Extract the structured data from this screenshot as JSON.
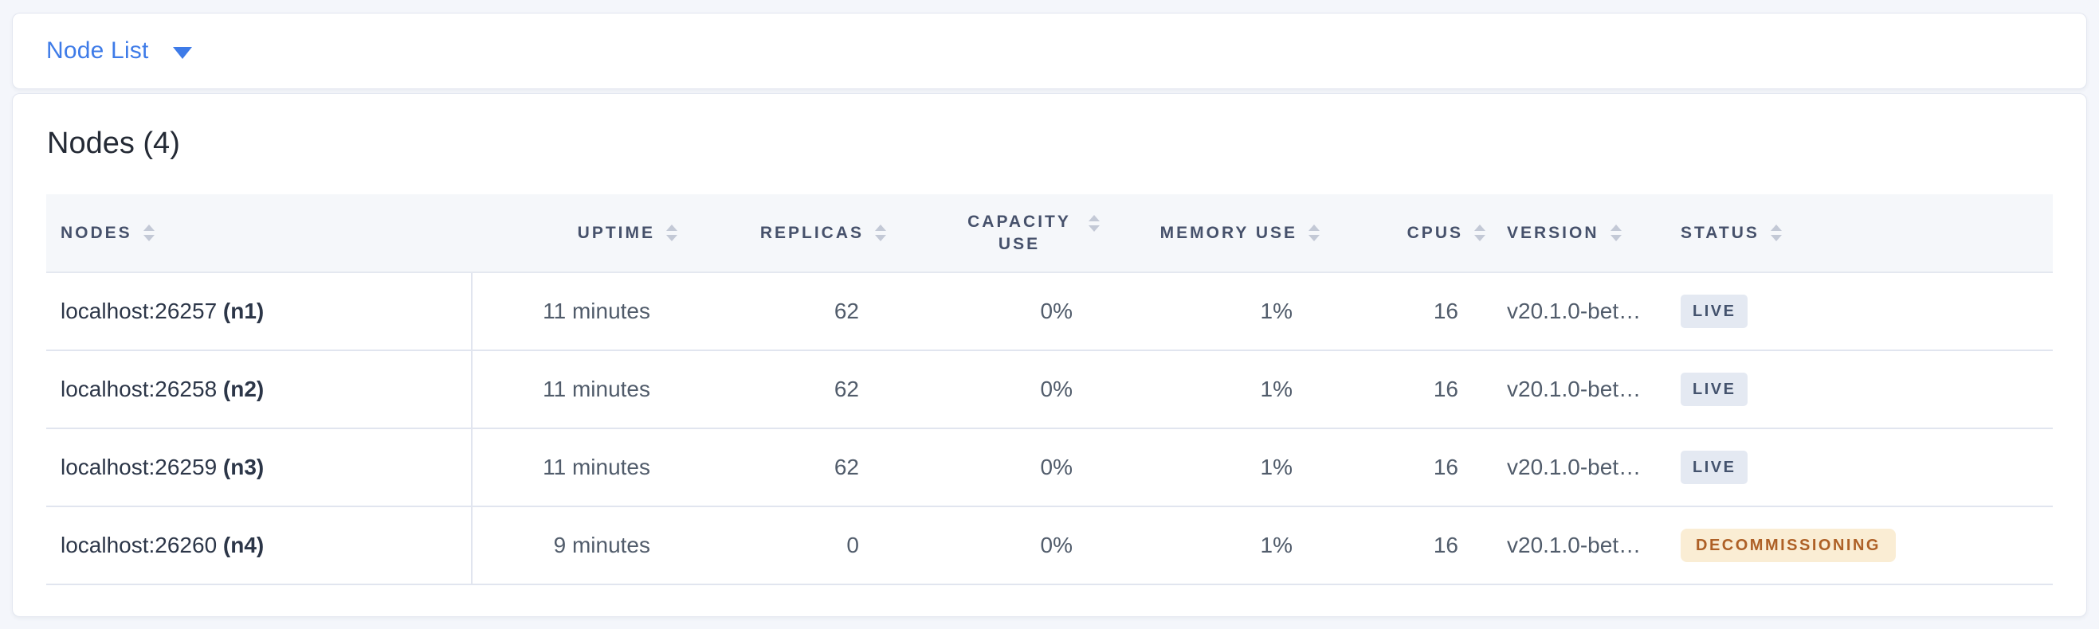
{
  "toolbar": {
    "view_selector_label": "Node List"
  },
  "main": {
    "title": "Nodes (4)"
  },
  "table": {
    "columns": [
      {
        "id": "nodes",
        "label": "NODES"
      },
      {
        "id": "uptime",
        "label": "UPTIME"
      },
      {
        "id": "replicas",
        "label": "REPLICAS"
      },
      {
        "id": "capacity",
        "label": "CAPACITY USE"
      },
      {
        "id": "memory",
        "label": "MEMORY USE"
      },
      {
        "id": "cpus",
        "label": "CPUS"
      },
      {
        "id": "version",
        "label": "VERSION"
      },
      {
        "id": "status",
        "label": "STATUS"
      }
    ],
    "rows": [
      {
        "address": "localhost:26257",
        "node_id": "(n1)",
        "uptime": "11 minutes",
        "replicas": "62",
        "capacity": "0%",
        "memory": "1%",
        "cpus": "16",
        "version": "v20.1.0-bet…",
        "status": {
          "label": "LIVE",
          "kind": "live"
        }
      },
      {
        "address": "localhost:26258",
        "node_id": "(n2)",
        "uptime": "11 minutes",
        "replicas": "62",
        "capacity": "0%",
        "memory": "1%",
        "cpus": "16",
        "version": "v20.1.0-bet…",
        "status": {
          "label": "LIVE",
          "kind": "live"
        }
      },
      {
        "address": "localhost:26259",
        "node_id": "(n3)",
        "uptime": "11 minutes",
        "replicas": "62",
        "capacity": "0%",
        "memory": "1%",
        "cpus": "16",
        "version": "v20.1.0-bet…",
        "status": {
          "label": "LIVE",
          "kind": "live"
        }
      },
      {
        "address": "localhost:26260",
        "node_id": "(n4)",
        "uptime": "9 minutes",
        "replicas": "0",
        "capacity": "0%",
        "memory": "1%",
        "cpus": "16",
        "version": "v20.1.0-bet…",
        "status": {
          "label": "DECOMMISSIONING",
          "kind": "decommissioning"
        }
      }
    ]
  },
  "icons": {
    "view_selector_caret": "caret-down-icon",
    "column_sort": "sort-arrows-icon"
  },
  "colors": {
    "accent_blue": "#3E7BE8",
    "live_badge_bg": "#E4E9F2",
    "live_badge_text": "#44536E",
    "decommissioning_badge_bg": "#FAEDD4",
    "decommissioning_badge_text": "#AE6026",
    "header_bg": "#F5F7FA",
    "page_bg": "#F4F6FB"
  }
}
